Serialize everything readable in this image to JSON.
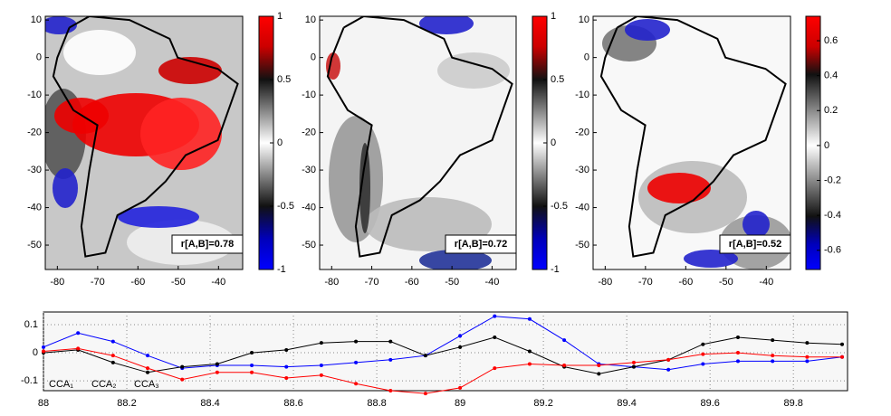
{
  "chart_data": [
    {
      "type": "map",
      "xlim": [
        -83,
        -34
      ],
      "xticks": [
        -80,
        -70,
        -60,
        -50,
        -40
      ],
      "ylim": [
        -56.5,
        11
      ],
      "yticks": [
        10,
        0,
        -10,
        -20,
        -30,
        -40,
        -50
      ],
      "clim": [
        -1,
        1
      ],
      "cticks": [
        1,
        0.5,
        0,
        -0.5,
        -1
      ],
      "annotation": "r[A,B]=0.78"
    },
    {
      "type": "map",
      "xlim": [
        -83,
        -34
      ],
      "xticks": [
        -80,
        -70,
        -60,
        -50,
        -40
      ],
      "ylim": [
        -56.5,
        11
      ],
      "yticks": [
        10,
        0,
        -10,
        -20,
        -30,
        -40,
        -50
      ],
      "clim": [
        -1,
        1
      ],
      "cticks": [
        1,
        0.5,
        0,
        -0.5,
        -1
      ],
      "annotation": "r[A,B]=0.72"
    },
    {
      "type": "map",
      "xlim": [
        -83,
        -34
      ],
      "xticks": [
        -80,
        -70,
        -60,
        -50,
        -40
      ],
      "ylim": [
        -56.5,
        11
      ],
      "yticks": [
        10,
        0,
        -10,
        -20,
        -30,
        -40,
        -50
      ],
      "clim": [
        -0.71,
        0.74
      ],
      "cticks": [
        0.6,
        0.4,
        0.2,
        0,
        -0.2,
        -0.4,
        -0.6
      ],
      "annotation": "r[A,B]=0.52"
    },
    {
      "type": "line",
      "legend": "lower left",
      "grid": true,
      "x": [
        88,
        88.083,
        88.167,
        88.25,
        88.333,
        88.417,
        88.5,
        88.583,
        88.667,
        88.75,
        88.833,
        88.917,
        89,
        89.083,
        89.167,
        89.25,
        89.333,
        89.417,
        89.5,
        89.583,
        89.667,
        89.75,
        89.833,
        89.917
      ],
      "xlim": [
        88,
        89.93
      ],
      "xticks": [
        88,
        88.2,
        88.4,
        88.6,
        88.8,
        89,
        89.2,
        89.4,
        89.6,
        89.8
      ],
      "ylim": [
        -0.135,
        0.145
      ],
      "yticks": [
        0.1,
        0,
        -0.1
      ],
      "series": [
        {
          "name": "CCA₁",
          "color": "#0000ff",
          "values": [
            0.02,
            0.07,
            0.04,
            -0.01,
            -0.055,
            -0.045,
            -0.045,
            -0.05,
            -0.045,
            -0.035,
            -0.025,
            -0.01,
            0.06,
            0.13,
            0.12,
            0.045,
            -0.04,
            -0.05,
            -0.06,
            -0.04,
            -0.03,
            -0.03,
            -0.03,
            -0.015
          ]
        },
        {
          "name": "CCA₂",
          "color": "#000000",
          "values": [
            0.0,
            0.01,
            -0.035,
            -0.07,
            -0.05,
            -0.04,
            0.0,
            0.01,
            0.035,
            0.04,
            0.04,
            -0.01,
            0.02,
            0.055,
            0.005,
            -0.05,
            -0.075,
            -0.05,
            -0.025,
            0.03,
            0.055,
            0.045,
            0.035,
            0.03
          ]
        },
        {
          "name": "CCA₃",
          "color": "#ff0000",
          "values": [
            0.005,
            0.015,
            -0.01,
            -0.055,
            -0.095,
            -0.07,
            -0.07,
            -0.09,
            -0.08,
            -0.11,
            -0.135,
            -0.145,
            -0.125,
            -0.055,
            -0.04,
            -0.045,
            -0.045,
            -0.035,
            -0.025,
            -0.005,
            0.0,
            -0.01,
            -0.015,
            -0.015
          ]
        }
      ]
    }
  ]
}
